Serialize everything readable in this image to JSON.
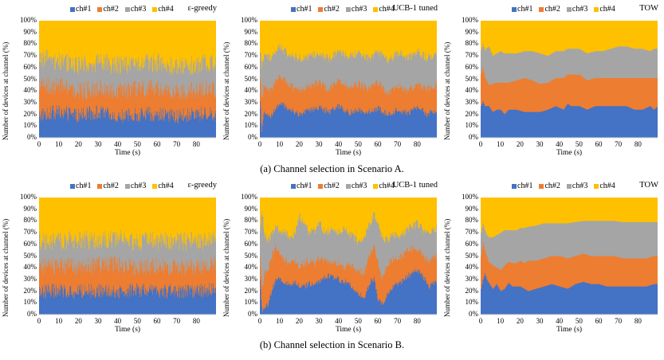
{
  "figure": {
    "captions": [
      "(a) Channel selection in Scenario A.",
      "(b) Channel selection in Scenario B."
    ]
  },
  "legend": [
    {
      "label": "ch#1",
      "color": "#4472C4"
    },
    {
      "label": "ch#2",
      "color": "#ED7D31"
    },
    {
      "label": "ch#3",
      "color": "#A5A5A5"
    },
    {
      "label": "ch#4",
      "color": "#FFC000"
    }
  ],
  "axes": {
    "ylabel": "Number of devices at channel (%)",
    "xlabel": "Time (s)",
    "yticks": [
      "0%",
      "10%",
      "20%",
      "30%",
      "40%",
      "50%",
      "60%",
      "70%",
      "80%",
      "90%",
      "100%"
    ],
    "xticks": [
      "0",
      "10",
      "20",
      "30",
      "40",
      "50",
      "60",
      "70",
      "80"
    ]
  },
  "chart_data": [
    {
      "type": "area",
      "stacked": true,
      "scenario": "A",
      "title": "ε-greedy",
      "xlabel": "Time (s)",
      "ylabel": "Number of devices at channel (%)",
      "xlim": [
        0,
        90
      ],
      "ylim": [
        0,
        100
      ],
      "legend": "top",
      "approx_mean_share_pct": {
        "ch#1": 20,
        "ch#2": 22,
        "ch#3": 20,
        "ch#4": 38
      },
      "noise": "high",
      "cumulative_profile": {
        "x": [
          0,
          10,
          20,
          30,
          40,
          50,
          60,
          70,
          80,
          90
        ],
        "ch1": [
          20,
          22,
          19,
          22,
          18,
          20,
          20,
          18,
          20,
          20
        ],
        "ch1_2": [
          45,
          44,
          40,
          42,
          40,
          42,
          43,
          39,
          41,
          42
        ],
        "ch1_2_3": [
          68,
          66,
          62,
          64,
          62,
          63,
          64,
          60,
          63,
          64
        ]
      }
    },
    {
      "type": "area",
      "stacked": true,
      "scenario": "A",
      "title": "UCB-1 tuned",
      "xlabel": "Time (s)",
      "ylabel": "Number of devices at channel (%)",
      "xlim": [
        0,
        90
      ],
      "ylim": [
        0,
        100
      ],
      "legend": "top",
      "noise": "medium",
      "cumulative_profile": {
        "x": [
          0,
          1,
          2,
          5,
          10,
          15,
          20,
          25,
          30,
          35,
          40,
          45,
          50,
          55,
          60,
          65,
          70,
          75,
          80,
          85,
          90
        ],
        "ch1": [
          30,
          5,
          22,
          17,
          30,
          24,
          20,
          23,
          26,
          22,
          27,
          21,
          24,
          22,
          25,
          20,
          24,
          21,
          26,
          20,
          24
        ],
        "ch1_2": [
          55,
          30,
          45,
          40,
          52,
          45,
          40,
          44,
          47,
          41,
          48,
          43,
          46,
          42,
          47,
          38,
          45,
          40,
          46,
          41,
          46
        ],
        "ch1_2_3": [
          75,
          60,
          70,
          68,
          78,
          70,
          68,
          70,
          72,
          68,
          74,
          69,
          72,
          68,
          74,
          66,
          73,
          68,
          74,
          68,
          72
        ]
      }
    },
    {
      "type": "area",
      "stacked": true,
      "scenario": "A",
      "title": "TOW",
      "xlabel": "Time (s)",
      "ylabel": "Number of devices at channel (%)",
      "xlim": [
        0,
        90
      ],
      "ylim": [
        0,
        100
      ],
      "legend": "top",
      "noise": "low",
      "cumulative_profile": {
        "x": [
          0,
          1,
          2,
          4,
          6,
          8,
          10,
          12,
          14,
          18,
          22,
          26,
          30,
          34,
          38,
          42,
          44,
          46,
          50,
          54,
          58,
          62,
          66,
          70,
          74,
          78,
          82,
          86,
          88,
          90
        ],
        "ch1": [
          27,
          31,
          27,
          27,
          22,
          24,
          24,
          20,
          24,
          24,
          22,
          22,
          22,
          24,
          27,
          24,
          29,
          27,
          27,
          24,
          27,
          27,
          27,
          27,
          27,
          24,
          24,
          27,
          24,
          27
        ],
        "ch1_2": [
          55,
          60,
          52,
          45,
          46,
          47,
          47,
          47,
          47,
          49,
          51,
          49,
          46,
          47,
          51,
          51,
          54,
          54,
          54,
          49,
          51,
          51,
          51,
          51,
          51,
          51,
          51,
          51,
          51,
          51
        ],
        "ch1_2_3": [
          75,
          80,
          75,
          78,
          70,
          72,
          74,
          72,
          72,
          72,
          74,
          74,
          72,
          70,
          74,
          74,
          76,
          76,
          76,
          72,
          74,
          74,
          76,
          78,
          78,
          76,
          76,
          74,
          76,
          76
        ]
      }
    },
    {
      "type": "area",
      "stacked": true,
      "scenario": "B",
      "title": "ε-greedy",
      "xlabel": "Time (s)",
      "ylabel": "Number of devices at channel (%)",
      "xlim": [
        0,
        90
      ],
      "ylim": [
        0,
        100
      ],
      "legend": "top",
      "noise": "high",
      "cumulative_profile": {
        "x": [
          0,
          10,
          20,
          30,
          40,
          50,
          60,
          70,
          80,
          90
        ],
        "ch1": [
          20,
          20,
          20,
          20,
          20,
          21,
          20,
          20,
          20,
          22
        ],
        "ch1_2": [
          40,
          42,
          40,
          42,
          43,
          40,
          41,
          40,
          40,
          43
        ],
        "ch1_2_3": [
          62,
          63,
          64,
          63,
          66,
          62,
          63,
          63,
          63,
          65
        ]
      }
    },
    {
      "type": "area",
      "stacked": true,
      "scenario": "B",
      "title": "UCB-1 tuned",
      "xlabel": "Time (s)",
      "ylabel": "Number of devices at channel (%)",
      "xlim": [
        0,
        90
      ],
      "ylim": [
        0,
        100
      ],
      "legend": "top",
      "noise": "medium",
      "cumulative_profile": {
        "x": [
          0,
          1,
          2,
          4,
          6,
          8,
          10,
          12,
          15,
          18,
          20,
          22,
          25,
          28,
          30,
          33,
          36,
          40,
          43,
          46,
          50,
          53,
          56,
          58,
          60,
          62,
          65,
          68,
          72,
          76,
          80,
          83,
          86,
          90
        ],
        "ch1": [
          28,
          3,
          5,
          8,
          20,
          30,
          30,
          28,
          26,
          28,
          24,
          24,
          26,
          28,
          28,
          32,
          34,
          30,
          28,
          26,
          18,
          14,
          28,
          30,
          12,
          8,
          18,
          25,
          28,
          34,
          38,
          32,
          24,
          28
        ],
        "ch1_2": [
          50,
          20,
          35,
          38,
          50,
          58,
          52,
          48,
          42,
          46,
          42,
          44,
          46,
          44,
          48,
          46,
          46,
          44,
          40,
          42,
          38,
          36,
          52,
          60,
          44,
          32,
          44,
          48,
          50,
          56,
          56,
          50,
          46,
          50
        ],
        "ch1_2_3": [
          72,
          90,
          70,
          64,
          68,
          74,
          70,
          72,
          66,
          70,
          84,
          80,
          70,
          72,
          78,
          70,
          72,
          70,
          74,
          68,
          62,
          66,
          78,
          86,
          80,
          66,
          64,
          68,
          68,
          74,
          78,
          72,
          70,
          74
        ]
      }
    },
    {
      "type": "area",
      "stacked": true,
      "scenario": "B",
      "title": "TOW",
      "xlabel": "Time (s)",
      "ylabel": "Number of devices at channel (%)",
      "xlim": [
        0,
        90
      ],
      "ylim": [
        0,
        100
      ],
      "legend": "top",
      "noise": "low",
      "cumulative_profile": {
        "x": [
          0,
          1,
          2,
          3,
          4,
          6,
          8,
          10,
          12,
          14,
          16,
          18,
          20,
          22,
          24,
          28,
          32,
          36,
          40,
          44,
          48,
          52,
          56,
          60,
          64,
          68,
          72,
          76,
          80,
          84,
          88,
          90
        ],
        "ch1": [
          22,
          30,
          35,
          30,
          27,
          22,
          26,
          20,
          22,
          27,
          24,
          24,
          24,
          22,
          20,
          22,
          24,
          26,
          24,
          22,
          26,
          28,
          26,
          26,
          24,
          24,
          24,
          24,
          24,
          24,
          26,
          26
        ],
        "ch1_2": [
          50,
          62,
          55,
          50,
          45,
          42,
          40,
          38,
          42,
          45,
          44,
          44,
          46,
          44,
          46,
          46,
          48,
          50,
          50,
          48,
          50,
          52,
          50,
          50,
          50,
          50,
          48,
          48,
          48,
          48,
          50,
          50
        ],
        "ch1_2_3": [
          70,
          78,
          72,
          68,
          66,
          66,
          68,
          70,
          72,
          72,
          72,
          72,
          74,
          74,
          75,
          76,
          78,
          78,
          78,
          78,
          79,
          80,
          80,
          80,
          80,
          80,
          79,
          79,
          79,
          79,
          79,
          79
        ]
      }
    }
  ]
}
